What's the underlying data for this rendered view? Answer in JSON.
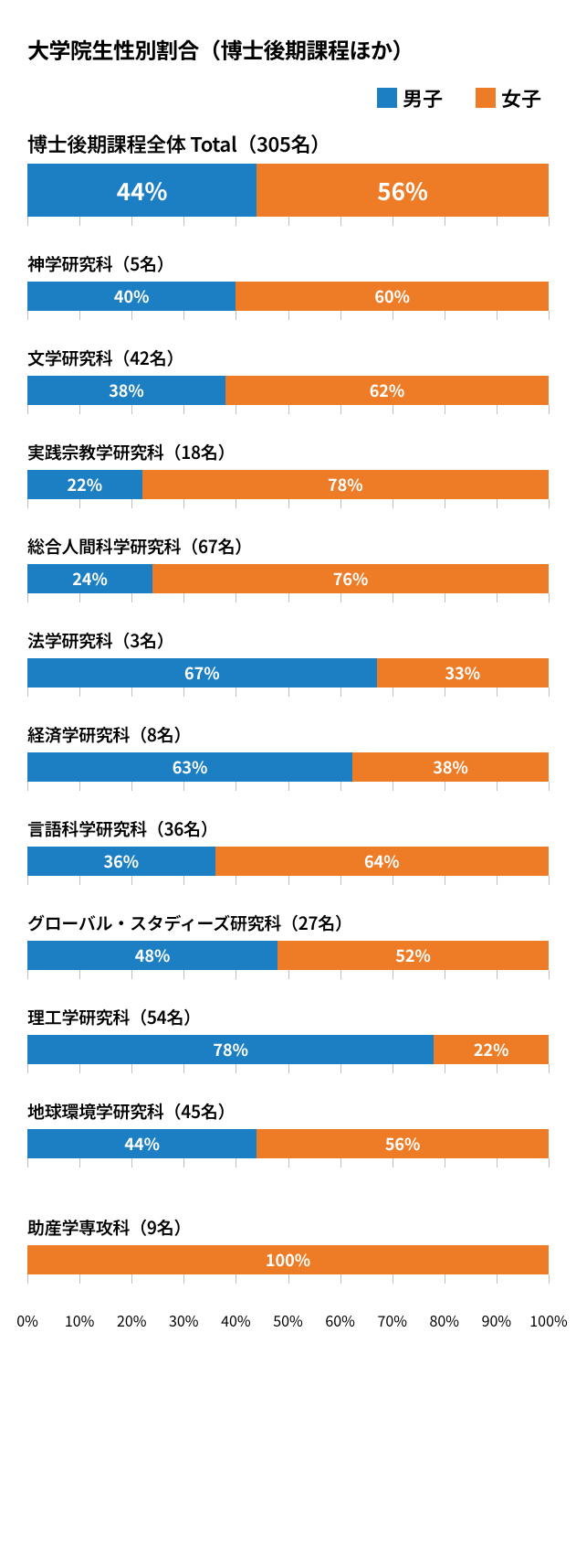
{
  "title": "大学院生性別割合（博士後期課程ほか）",
  "legend": {
    "male": {
      "label": "男子",
      "color": "#1c7fc4"
    },
    "female": {
      "label": "女子",
      "color": "#ee7b26"
    }
  },
  "colors": {
    "male": "#1c7fc4",
    "female": "#ee7b26",
    "tick": "#bfbfbf",
    "bg": "#ffffff"
  },
  "axis": {
    "min": 0,
    "max": 100,
    "step": 10,
    "labels": [
      "0%",
      "10%",
      "20%",
      "30%",
      "40%",
      "50%",
      "60%",
      "70%",
      "80%",
      "90%",
      "100%"
    ]
  },
  "total": {
    "label": "博士後期課程全体 Total（305名）",
    "male": 44,
    "female": 56,
    "male_text": "44%",
    "female_text": "56%"
  },
  "rows": [
    {
      "label": "神学研究科（5名）",
      "male": 40,
      "female": 60,
      "male_text": "40%",
      "female_text": "60%"
    },
    {
      "label": "文学研究科（42名）",
      "male": 38,
      "female": 62,
      "male_text": "38%",
      "female_text": "62%"
    },
    {
      "label": "実践宗教学研究科（18名）",
      "male": 22,
      "female": 78,
      "male_text": "22%",
      "female_text": "78%"
    },
    {
      "label": "総合人間科学研究科（67名）",
      "male": 24,
      "female": 76,
      "male_text": "24%",
      "female_text": "76%"
    },
    {
      "label": "法学研究科（3名）",
      "male": 67,
      "female": 33,
      "male_text": "67%",
      "female_text": "33%"
    },
    {
      "label": "経済学研究科（8名）",
      "male": 63,
      "female": 38,
      "male_text": "63%",
      "female_text": "38%"
    },
    {
      "label": "言語科学研究科（36名）",
      "male": 36,
      "female": 64,
      "male_text": "36%",
      "female_text": "64%"
    },
    {
      "label": "グローバル・スタディーズ研究科（27名）",
      "male": 48,
      "female": 52,
      "male_text": "48%",
      "female_text": "52%"
    },
    {
      "label": "理工学研究科（54名）",
      "male": 78,
      "female": 22,
      "male_text": "78%",
      "female_text": "22%"
    },
    {
      "label": "地球環境学研究科（45名）",
      "male": 44,
      "female": 56,
      "male_text": "44%",
      "female_text": "56%"
    }
  ],
  "extra_gap_before": "助産学専攻科",
  "extra": {
    "label": "助産学専攻科（9名）",
    "male": 0,
    "female": 100,
    "male_text": "",
    "female_text": "100%"
  }
}
